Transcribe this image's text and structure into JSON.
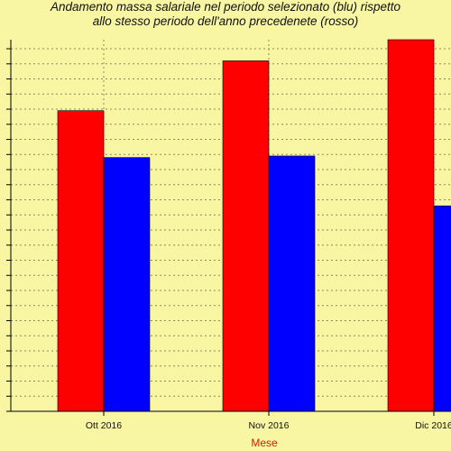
{
  "chart_data": {
    "type": "bar",
    "title": "Andamento massa salariale nel periodo selezionato (blu) rispetto",
    "subtitle": "allo stesso periodo dell'anno precedenete (rosso)",
    "xlabel": "Mese",
    "ylabel": "",
    "categories": [
      "Ott  2016",
      "Nov  2016",
      "Dic  2016"
    ],
    "series": [
      {
        "name": "",
        "color": "#ff0000",
        "values": [
          16.9,
          20.2,
          21.6
        ]
      },
      {
        "name": "",
        "color": "#0000ff",
        "values": [
          13.8,
          13.9,
          10.6
        ]
      }
    ],
    "ylim": [
      -3,
      21.6
    ],
    "grid": true,
    "legend": "none"
  }
}
